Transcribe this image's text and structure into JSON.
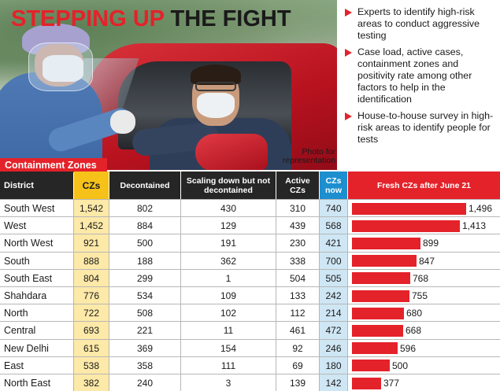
{
  "headline": {
    "part1": "STEPPING UP",
    "part2": "THE FIGHT"
  },
  "photo_credit": "Photo for representation",
  "bullets": [
    "Experts to identify high-risk areas to conduct aggressive testing",
    "Case load, active cases, containment zones and positivity rate among other factors to help in the identification",
    "House-to-house survey in high-risk areas to identify people for tests"
  ],
  "colors": {
    "accent_red": "#e4222a",
    "header_dark": "#262626",
    "header_yellow": "#f6c21a",
    "header_blue": "#1d8fcf"
  },
  "table": {
    "label": "Containment Zones",
    "headers": {
      "district": "District",
      "czs": "CZs",
      "decontained": "Decontained",
      "scaling_down": "Scaling down but not decontained",
      "active": "Active CZs",
      "now": "CZs now",
      "fresh": "Fresh CZs after June 21"
    },
    "rows": [
      {
        "district": "South West",
        "czs": "1,542",
        "decontained": "802",
        "scaling_down": "430",
        "active": "310",
        "now": "740",
        "fresh": "1,496",
        "fresh_value": 1496
      },
      {
        "district": "West",
        "czs": "1,452",
        "decontained": "884",
        "scaling_down": "129",
        "active": "439",
        "now": "568",
        "fresh": "1,413",
        "fresh_value": 1413
      },
      {
        "district": "North West",
        "czs": "921",
        "decontained": "500",
        "scaling_down": "191",
        "active": "230",
        "now": "421",
        "fresh": "899",
        "fresh_value": 899
      },
      {
        "district": "South",
        "czs": "888",
        "decontained": "188",
        "scaling_down": "362",
        "active": "338",
        "now": "700",
        "fresh": "847",
        "fresh_value": 847
      },
      {
        "district": "South East",
        "czs": "804",
        "decontained": "299",
        "scaling_down": "1",
        "active": "504",
        "now": "505",
        "fresh": "768",
        "fresh_value": 768
      },
      {
        "district": "Shahdara",
        "czs": "776",
        "decontained": "534",
        "scaling_down": "109",
        "active": "133",
        "now": "242",
        "fresh": "755",
        "fresh_value": 755
      },
      {
        "district": "North",
        "czs": "722",
        "decontained": "508",
        "scaling_down": "102",
        "active": "112",
        "now": "214",
        "fresh": "680",
        "fresh_value": 680
      },
      {
        "district": "Central",
        "czs": "693",
        "decontained": "221",
        "scaling_down": "11",
        "active": "461",
        "now": "472",
        "fresh": "668",
        "fresh_value": 668
      },
      {
        "district": "New Delhi",
        "czs": "615",
        "decontained": "369",
        "scaling_down": "154",
        "active": "92",
        "now": "246",
        "fresh": "596",
        "fresh_value": 596
      },
      {
        "district": "East",
        "czs": "538",
        "decontained": "358",
        "scaling_down": "111",
        "active": "69",
        "now": "180",
        "fresh": "500",
        "fresh_value": 500
      },
      {
        "district": "North East",
        "czs": "382",
        "decontained": "240",
        "scaling_down": "3",
        "active": "139",
        "now": "142",
        "fresh": "377",
        "fresh_value": 377
      }
    ]
  }
}
